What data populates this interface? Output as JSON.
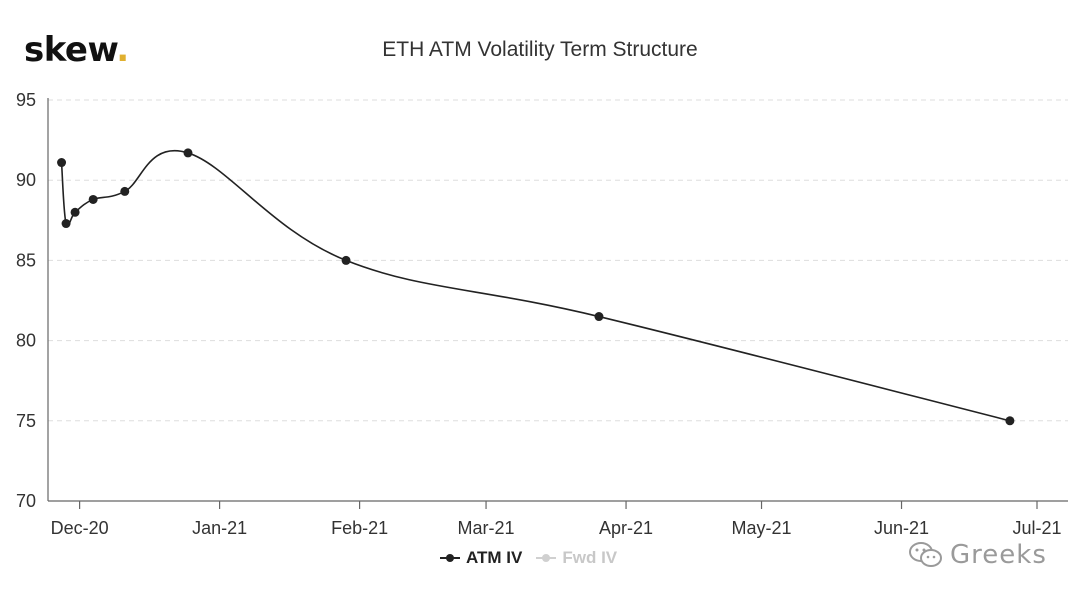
{
  "logo": {
    "text": "skew",
    "dot": "."
  },
  "watermark": {
    "text": "Greeks",
    "icon": "wechat-icon"
  },
  "colors": {
    "line": "#222222",
    "grid": "#dddddd",
    "inactive": "#d0d0d0",
    "logo_dot": "#e0b030"
  },
  "chart_data": {
    "type": "line",
    "title": "ETH ATM Volatility Term Structure",
    "xlabel": "",
    "ylabel": "",
    "ylim": [
      70,
      95
    ],
    "xlim": [
      "2020-11-24",
      "2021-07-01"
    ],
    "yticks": [
      70,
      75,
      80,
      85,
      90,
      95
    ],
    "xticks": [
      {
        "label": "Dec-20",
        "date": "2020-12-01"
      },
      {
        "label": "Jan-21",
        "date": "2021-01-01"
      },
      {
        "label": "Feb-21",
        "date": "2021-02-01"
      },
      {
        "label": "Mar-21",
        "date": "2021-03-01"
      },
      {
        "label": "Apr-21",
        "date": "2021-04-01"
      },
      {
        "label": "May-21",
        "date": "2021-05-01"
      },
      {
        "label": "Jun-21",
        "date": "2021-06-01"
      },
      {
        "label": "Jul-21",
        "date": "2021-07-01"
      }
    ],
    "grid": true,
    "legend_position": "bottom",
    "series": [
      {
        "name": "ATM IV",
        "visible": true,
        "points": [
          {
            "x": "2020-11-27",
            "y": 91.1
          },
          {
            "x": "2020-11-28",
            "y": 87.3
          },
          {
            "x": "2020-11-30",
            "y": 88.0
          },
          {
            "x": "2020-12-04",
            "y": 88.8
          },
          {
            "x": "2020-12-11",
            "y": 89.3
          },
          {
            "x": "2020-12-25",
            "y": 91.7
          },
          {
            "x": "2021-01-29",
            "y": 85.0
          },
          {
            "x": "2021-03-26",
            "y": 81.5
          },
          {
            "x": "2021-06-25",
            "y": 75.0
          }
        ]
      },
      {
        "name": "Fwd IV",
        "visible": false,
        "points": []
      }
    ]
  }
}
